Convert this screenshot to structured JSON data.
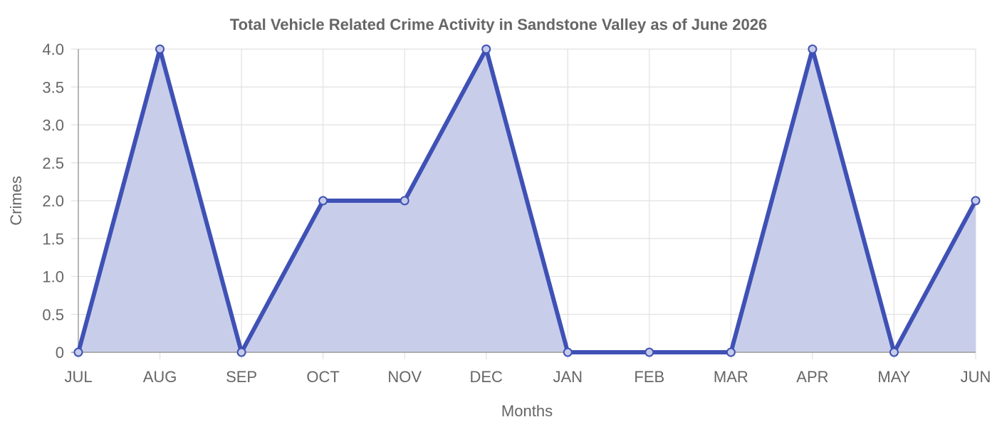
{
  "chart_data": {
    "type": "area",
    "title": "Total Vehicle Related Crime Activity in Sandstone Valley as of June 2026",
    "xlabel": "Months",
    "ylabel": "Crimes",
    "categories": [
      "JUL",
      "AUG",
      "SEP",
      "OCT",
      "NOV",
      "DEC",
      "JAN",
      "FEB",
      "MAR",
      "APR",
      "MAY",
      "JUN"
    ],
    "series": [
      {
        "values": [
          0,
          4,
          0,
          2,
          2,
          4,
          0,
          0,
          0,
          4,
          0,
          2
        ]
      }
    ],
    "ylim": [
      0,
      4
    ],
    "yticks": [
      "0",
      "0.5",
      "1.0",
      "1.5",
      "2.0",
      "2.5",
      "3.0",
      "3.5",
      "4.0"
    ],
    "ytick_values": [
      0,
      0.5,
      1,
      1.5,
      2,
      2.5,
      3,
      3.5,
      4
    ],
    "grid": true,
    "colors": {
      "line": "#3f51b5",
      "fill": "#c5cbe9",
      "grid": "#e1e1e1",
      "text": "#666666"
    }
  }
}
